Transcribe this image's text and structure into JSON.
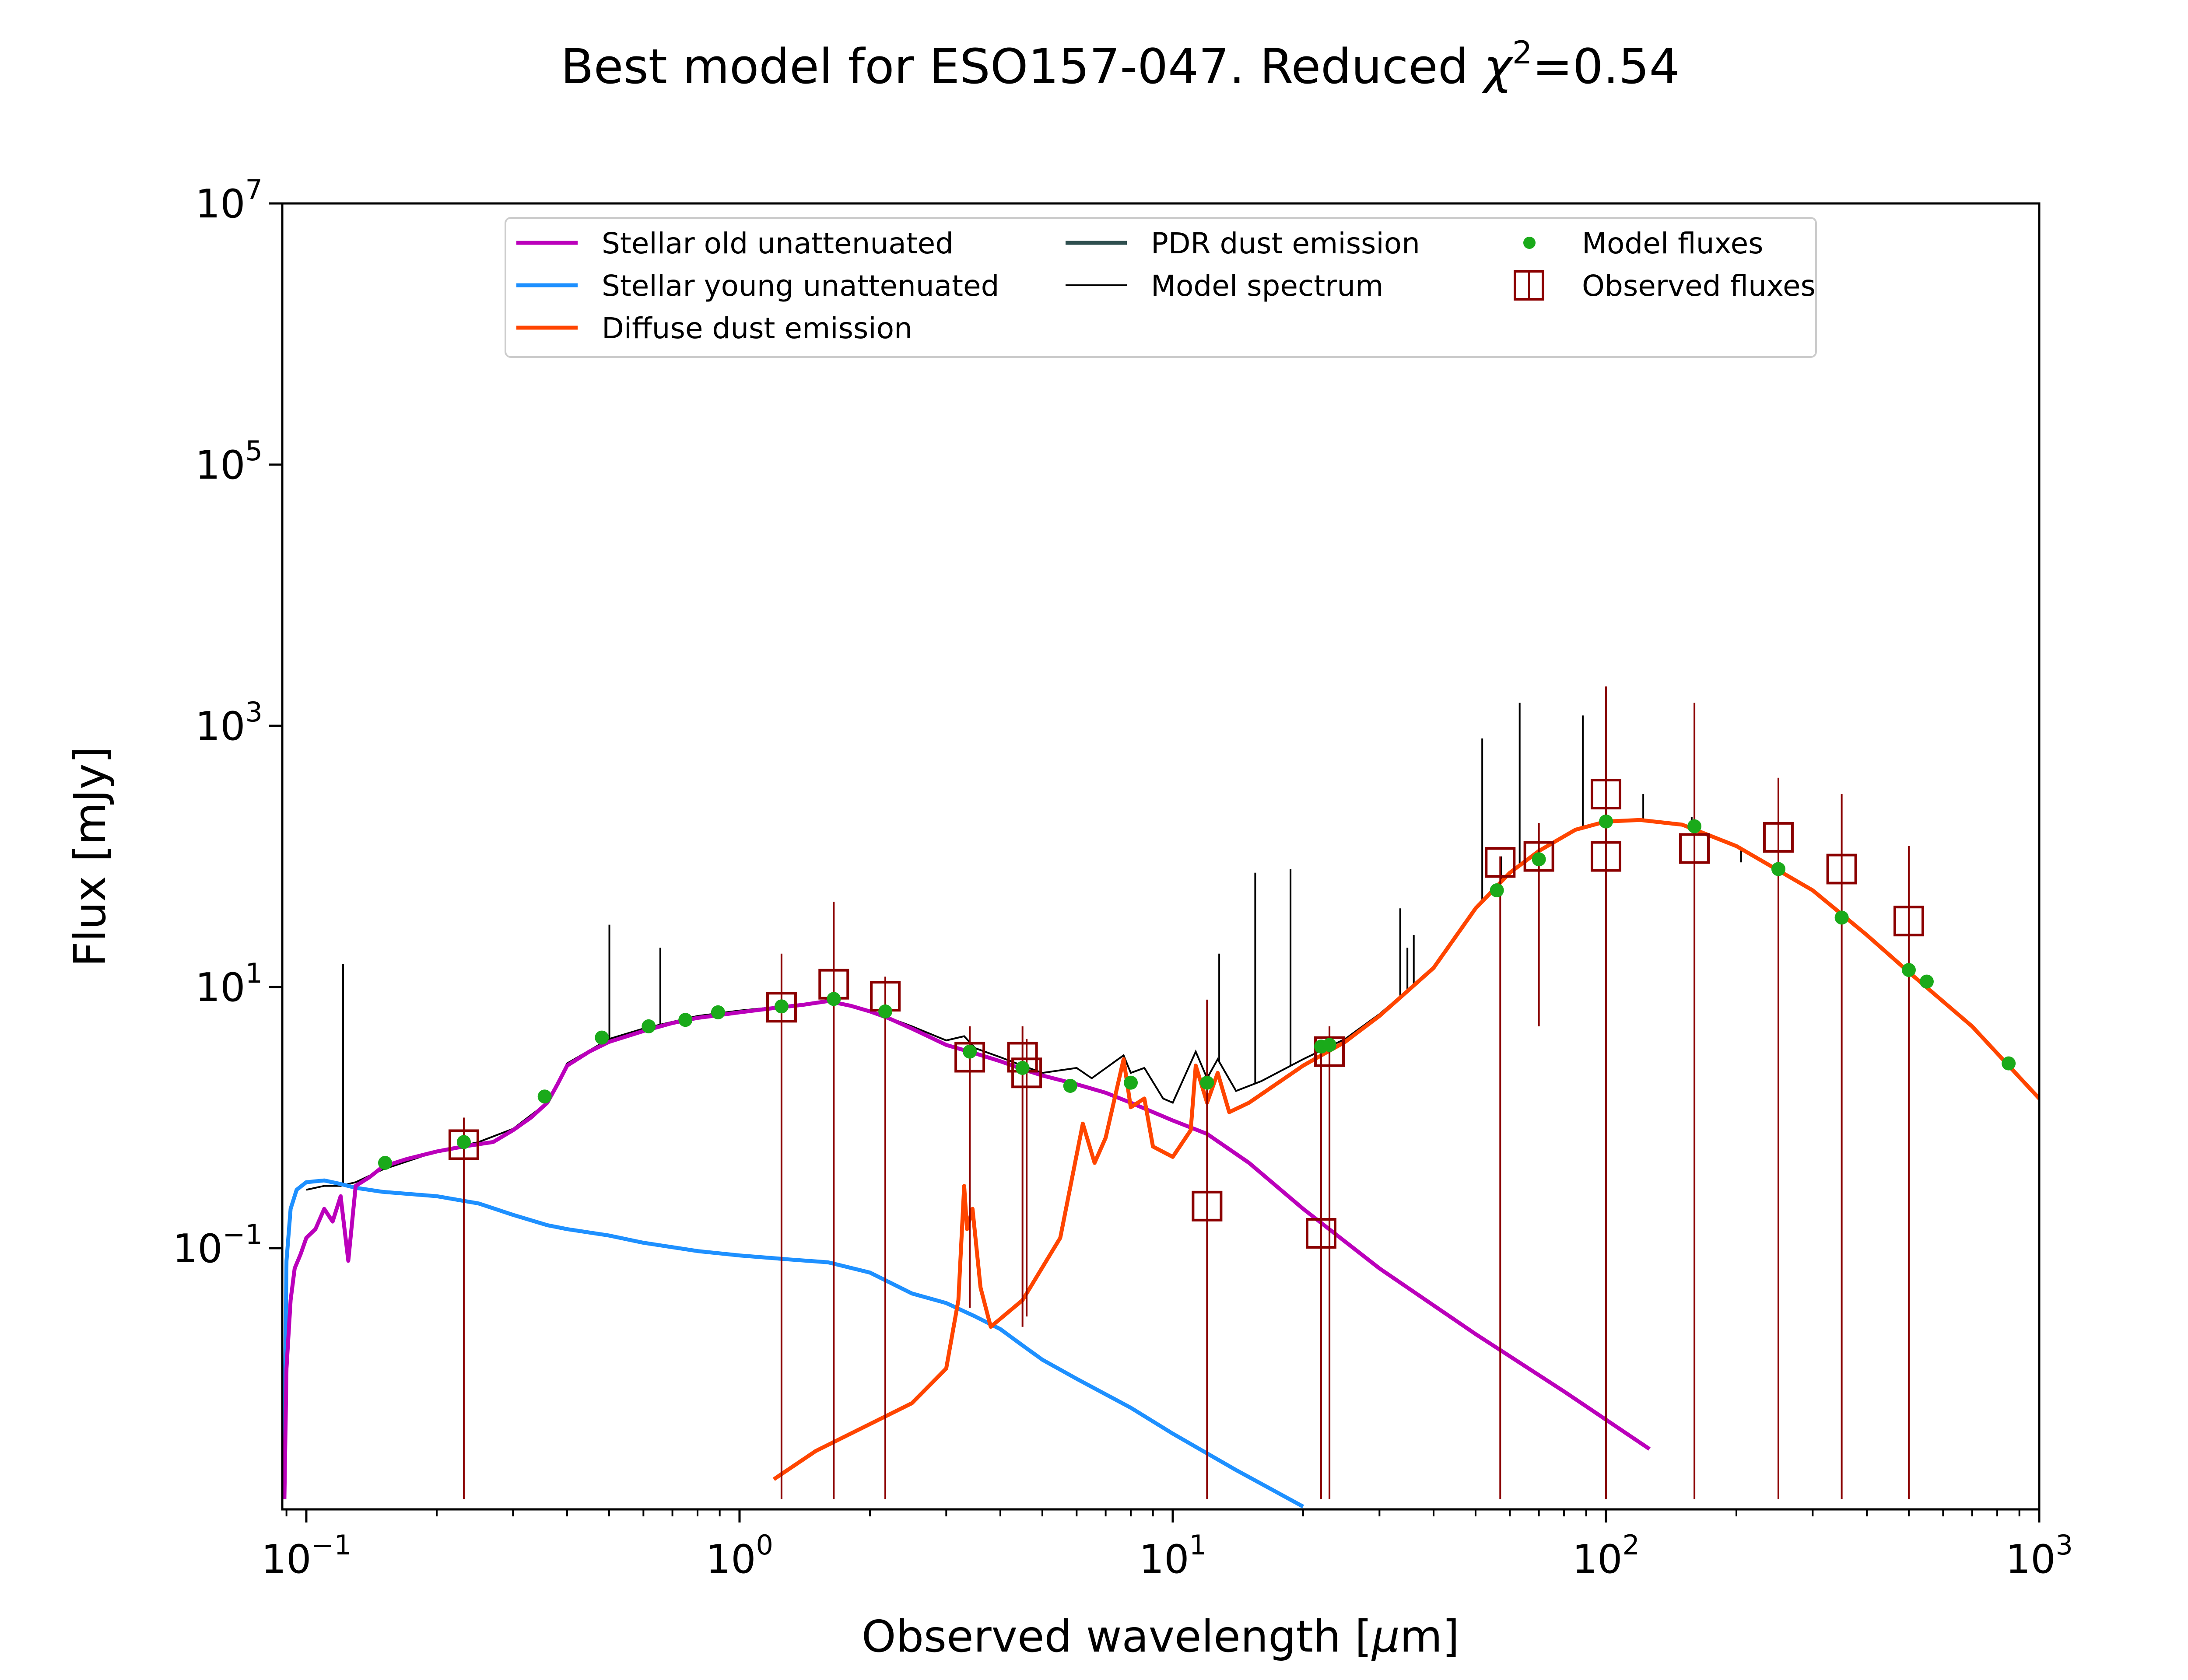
{
  "chart_data": {
    "type": "line",
    "title_prefix": "Best model for ESO157-047. Reduced ",
    "title_chi": "χ",
    "title_exp": "2",
    "title_suffix": "=0.54",
    "xlabel_prefix": "Observed wavelength [",
    "xlabel_mu": "μ",
    "xlabel_suffix": "m]",
    "ylabel": "Flux [mJy]",
    "xscale": "log",
    "yscale": "log",
    "xlim": [
      0.088,
      1000
    ],
    "ylim": [
      0.001,
      10000000
    ],
    "grid": false,
    "legend_placement": "upper-center",
    "x_ticks": [
      {
        "value": 0.1,
        "base": "10",
        "exp": "−1"
      },
      {
        "value": 1,
        "base": "10",
        "exp": "0"
      },
      {
        "value": 10,
        "base": "10",
        "exp": "1"
      },
      {
        "value": 100,
        "base": "10",
        "exp": "2"
      },
      {
        "value": 1000,
        "base": "10",
        "exp": "3"
      }
    ],
    "y_ticks": [
      {
        "value": 0.1,
        "base": "10",
        "exp": "−1"
      },
      {
        "value": 10,
        "base": "10",
        "exp": "1"
      },
      {
        "value": 1000,
        "base": "10",
        "exp": "3"
      },
      {
        "value": 100000,
        "base": "10",
        "exp": "5"
      },
      {
        "value": 10000000,
        "base": "10",
        "exp": "7"
      }
    ],
    "series": [
      {
        "name": "Stellar old unattenuated",
        "color": "#bb00bb",
        "kind": "line",
        "points": [
          [
            0.089,
            0.0012
          ],
          [
            0.09,
            0.012
          ],
          [
            0.092,
            0.04
          ],
          [
            0.094,
            0.07
          ],
          [
            0.097,
            0.09
          ],
          [
            0.1,
            0.12
          ],
          [
            0.105,
            0.14
          ],
          [
            0.11,
            0.2
          ],
          [
            0.115,
            0.16
          ],
          [
            0.12,
            0.25
          ],
          [
            0.125,
            0.08
          ],
          [
            0.13,
            0.3
          ],
          [
            0.14,
            0.35
          ],
          [
            0.15,
            0.42
          ],
          [
            0.17,
            0.48
          ],
          [
            0.2,
            0.55
          ],
          [
            0.23,
            0.6
          ],
          [
            0.27,
            0.65
          ],
          [
            0.3,
            0.8
          ],
          [
            0.33,
            1.0
          ],
          [
            0.36,
            1.3
          ],
          [
            0.38,
            1.8
          ],
          [
            0.4,
            2.5
          ],
          [
            0.45,
            3.2
          ],
          [
            0.5,
            3.8
          ],
          [
            0.6,
            4.6
          ],
          [
            0.7,
            5.3
          ],
          [
            0.8,
            5.8
          ],
          [
            0.9,
            6.1
          ],
          [
            1.0,
            6.4
          ],
          [
            1.2,
            6.9
          ],
          [
            1.4,
            7.3
          ],
          [
            1.6,
            7.8
          ],
          [
            1.8,
            7.2
          ],
          [
            2.0,
            6.5
          ],
          [
            2.2,
            5.8
          ],
          [
            2.5,
            4.8
          ],
          [
            3.0,
            3.6
          ],
          [
            3.5,
            3.1
          ],
          [
            4.0,
            2.7
          ],
          [
            4.5,
            2.35
          ],
          [
            5.0,
            2.1
          ],
          [
            6.0,
            1.8
          ],
          [
            7.0,
            1.55
          ],
          [
            8.0,
            1.3
          ],
          [
            10.0,
            0.95
          ],
          [
            12.0,
            0.75
          ],
          [
            15.0,
            0.45
          ],
          [
            20.0,
            0.2
          ],
          [
            30.0,
            0.07
          ],
          [
            50.0,
            0.022
          ],
          [
            80.0,
            0.008
          ],
          [
            126.0,
            0.0029
          ]
        ]
      },
      {
        "name": "Stellar young unattenuated",
        "color": "#1e90ff",
        "kind": "line",
        "points": [
          [
            0.089,
            0.003
          ],
          [
            0.09,
            0.08
          ],
          [
            0.092,
            0.2
          ],
          [
            0.095,
            0.28
          ],
          [
            0.1,
            0.32
          ],
          [
            0.11,
            0.33
          ],
          [
            0.12,
            0.31
          ],
          [
            0.13,
            0.29
          ],
          [
            0.15,
            0.27
          ],
          [
            0.2,
            0.25
          ],
          [
            0.25,
            0.22
          ],
          [
            0.3,
            0.18
          ],
          [
            0.36,
            0.15
          ],
          [
            0.4,
            0.14
          ],
          [
            0.5,
            0.125
          ],
          [
            0.6,
            0.11
          ],
          [
            0.8,
            0.095
          ],
          [
            1.0,
            0.088
          ],
          [
            1.3,
            0.082
          ],
          [
            1.6,
            0.078
          ],
          [
            2.0,
            0.065
          ],
          [
            2.5,
            0.045
          ],
          [
            3.0,
            0.038
          ],
          [
            3.5,
            0.03
          ],
          [
            4.0,
            0.024
          ],
          [
            4.5,
            0.018
          ],
          [
            5.0,
            0.014
          ],
          [
            6.0,
            0.01
          ],
          [
            8.0,
            0.006
          ],
          [
            10.0,
            0.0038
          ],
          [
            14.0,
            0.002
          ],
          [
            20.0,
            0.00105
          ]
        ]
      },
      {
        "name": "Diffuse dust emission",
        "color": "#ff4500",
        "kind": "line",
        "points": [
          [
            1.2,
            0.0017
          ],
          [
            1.5,
            0.0028
          ],
          [
            2.0,
            0.0045
          ],
          [
            2.5,
            0.0065
          ],
          [
            3.0,
            0.012
          ],
          [
            3.2,
            0.04
          ],
          [
            3.3,
            0.3
          ],
          [
            3.35,
            0.14
          ],
          [
            3.45,
            0.2
          ],
          [
            3.6,
            0.05
          ],
          [
            3.8,
            0.025
          ],
          [
            4.5,
            0.04
          ],
          [
            5.5,
            0.12
          ],
          [
            6.2,
            0.9
          ],
          [
            6.6,
            0.45
          ],
          [
            7.0,
            0.7
          ],
          [
            7.7,
            2.8
          ],
          [
            8.0,
            1.2
          ],
          [
            8.6,
            1.4
          ],
          [
            9.0,
            0.6
          ],
          [
            10.0,
            0.5
          ],
          [
            11.0,
            0.8
          ],
          [
            11.3,
            2.5
          ],
          [
            12.0,
            1.3
          ],
          [
            12.7,
            2.2
          ],
          [
            13.5,
            1.1
          ],
          [
            15.0,
            1.3
          ],
          [
            20.0,
            2.5
          ],
          [
            25.0,
            3.8
          ],
          [
            30.0,
            6.0
          ],
          [
            40.0,
            14.0
          ],
          [
            50.0,
            40.0
          ],
          [
            60.0,
            75.0
          ],
          [
            70.0,
            110.0
          ],
          [
            85.0,
            160.0
          ],
          [
            100.0,
            185.0
          ],
          [
            120.0,
            190.0
          ],
          [
            150.0,
            175.0
          ],
          [
            200.0,
            120.0
          ],
          [
            300.0,
            55.0
          ],
          [
            400.0,
            25.0
          ],
          [
            500.0,
            13.0
          ],
          [
            700.0,
            5.0
          ],
          [
            1000.0,
            1.4
          ]
        ]
      },
      {
        "name": "PDR dust emission",
        "color": "#2f4f4f",
        "kind": "line",
        "points": []
      },
      {
        "name": "Model spectrum",
        "color": "#000000",
        "kind": "thin-line",
        "points": [
          [
            0.1,
            0.28
          ],
          [
            0.11,
            0.3
          ],
          [
            0.12,
            0.3
          ],
          [
            0.13,
            0.32
          ],
          [
            0.15,
            0.4
          ],
          [
            0.2,
            0.55
          ],
          [
            0.25,
            0.65
          ],
          [
            0.3,
            0.82
          ],
          [
            0.36,
            1.3
          ],
          [
            0.4,
            2.6
          ],
          [
            0.5,
            4.0
          ],
          [
            0.6,
            4.8
          ],
          [
            0.8,
            6.0
          ],
          [
            1.0,
            6.6
          ],
          [
            1.2,
            7.0
          ],
          [
            1.6,
            7.8
          ],
          [
            2.0,
            6.6
          ],
          [
            2.5,
            5.0
          ],
          [
            3.0,
            3.9
          ],
          [
            3.3,
            4.2
          ],
          [
            3.5,
            3.4
          ],
          [
            4.0,
            2.9
          ],
          [
            4.5,
            2.5
          ],
          [
            5.0,
            2.2
          ],
          [
            6.0,
            2.4
          ],
          [
            6.5,
            2.0
          ],
          [
            7.7,
            3.0
          ],
          [
            8.0,
            2.2
          ],
          [
            8.6,
            2.4
          ],
          [
            9.5,
            1.4
          ],
          [
            10.0,
            1.3
          ],
          [
            11.3,
            3.2
          ],
          [
            12.0,
            2.0
          ],
          [
            12.7,
            2.8
          ],
          [
            14.0,
            1.6
          ],
          [
            16.0,
            1.9
          ],
          [
            20.0,
            2.8
          ],
          [
            25.0,
            4.0
          ],
          [
            30.0,
            6.2
          ],
          [
            40.0,
            14.0
          ],
          [
            50.0,
            40.0
          ],
          [
            60.0,
            75.0
          ],
          [
            70.0,
            110.0
          ],
          [
            85.0,
            160.0
          ],
          [
            100.0,
            185.0
          ],
          [
            120.0,
            190.0
          ],
          [
            150.0,
            175.0
          ],
          [
            200.0,
            120.0
          ],
          [
            300.0,
            55.0
          ],
          [
            500.0,
            13.0
          ],
          [
            700.0,
            5.0
          ],
          [
            1000.0,
            1.4
          ]
        ],
        "emission_lines": [
          [
            0.1216,
            15.0
          ],
          [
            0.5007,
            30.0
          ],
          [
            0.6563,
            20.0
          ],
          [
            12.8,
            18.0
          ],
          [
            15.5,
            75.0
          ],
          [
            18.7,
            80.0
          ],
          [
            33.5,
            40.0
          ],
          [
            34.8,
            20.0
          ],
          [
            36.0,
            25.0
          ],
          [
            51.8,
            800.0
          ],
          [
            57.3,
            100.0
          ],
          [
            63.2,
            1500.0
          ],
          [
            88.4,
            1200.0
          ],
          [
            121.9,
            300.0
          ],
          [
            157.7,
            200.0
          ],
          [
            205.0,
            90.0
          ]
        ]
      },
      {
        "name": "Model fluxes",
        "color": "#1aaa1a",
        "kind": "markers",
        "points": [
          [
            0.152,
            0.45
          ],
          [
            0.231,
            0.65
          ],
          [
            0.355,
            1.45
          ],
          [
            0.481,
            4.1
          ],
          [
            0.617,
            5.0
          ],
          [
            0.75,
            5.6
          ],
          [
            0.892,
            6.4
          ],
          [
            1.25,
            7.1
          ],
          [
            1.65,
            8.1
          ],
          [
            2.17,
            6.5
          ],
          [
            3.4,
            3.2
          ],
          [
            4.5,
            2.4
          ],
          [
            5.8,
            1.75
          ],
          [
            8.0,
            1.85
          ],
          [
            12.0,
            1.85
          ],
          [
            22.0,
            3.5
          ],
          [
            23.0,
            3.6
          ],
          [
            56.0,
            55.0
          ],
          [
            70.0,
            95.0
          ],
          [
            100.0,
            185.0
          ],
          [
            160.0,
            170.0
          ],
          [
            250.0,
            80.0
          ],
          [
            350.0,
            34.0
          ],
          [
            500.0,
            13.5
          ],
          [
            550.0,
            11.0
          ],
          [
            850.0,
            2.6
          ]
        ]
      },
      {
        "name": "Observed fluxes",
        "color": "#8b0000",
        "kind": "squares-with-errorbars",
        "points": [
          [
            0.231,
            0.62,
            0.0012,
            1.0
          ],
          [
            1.25,
            7.0,
            0.0012,
            18.0
          ],
          [
            1.65,
            10.5,
            0.0012,
            45.0
          ],
          [
            2.17,
            8.5,
            0.0012,
            12.0
          ],
          [
            3.4,
            2.9,
            0.035,
            5.0
          ],
          [
            4.5,
            2.9,
            0.025,
            5.0
          ],
          [
            4.6,
            2.2,
            0.03,
            4.0
          ],
          [
            12.0,
            0.21,
            0.0012,
            8.0
          ],
          [
            22.0,
            0.13,
            0.0012,
            3.5
          ],
          [
            23.0,
            3.2,
            0.0012,
            5.0
          ],
          [
            57.0,
            90.0,
            0.0012,
            100.0
          ],
          [
            70.0,
            100.0,
            5.0,
            180.0
          ],
          [
            100.0,
            300.0,
            0.0012,
            2000.0
          ],
          [
            100.0,
            100.0,
            0.0012,
            200.0
          ],
          [
            160.0,
            115.0,
            0.0012,
            1500.0
          ],
          [
            250.0,
            140.0,
            0.0012,
            400.0
          ],
          [
            350.0,
            80.0,
            0.0012,
            300.0
          ],
          [
            500.0,
            32.0,
            0.0012,
            120.0
          ]
        ]
      }
    ]
  }
}
